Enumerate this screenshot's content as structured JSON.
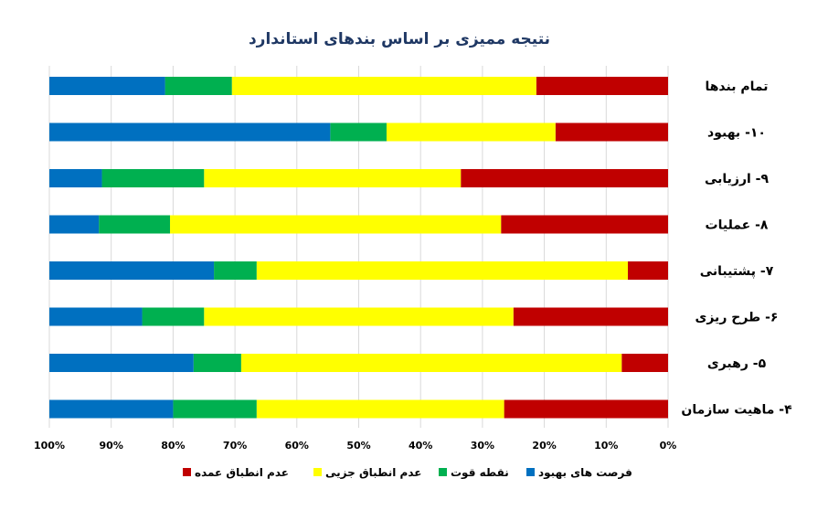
{
  "chart_data": {
    "type": "bar",
    "orientation": "horizontal",
    "stacked": "percent",
    "title": "نتیجه ممیزی بر اساس بندهای استاندارد",
    "categories": [
      "تمام بندها",
      "۱۰- بهبود",
      "۹- ارزیابی",
      "۸- عملیات",
      "۷- پشتیبانی",
      "۶- طرح ریزی",
      "۵- رهبری",
      "۴- ماهیت سازمان"
    ],
    "series": [
      {
        "name": "عدم انطباق عمده",
        "color": "#c00000",
        "values": [
          21.3,
          18.2,
          33.5,
          27.0,
          6.5,
          25.0,
          7.5,
          26.5
        ]
      },
      {
        "name": "عدم انطباق جزیی",
        "color": "#ffff00",
        "values": [
          49.2,
          27.3,
          41.5,
          53.5,
          60.0,
          50.0,
          61.5,
          40.0
        ]
      },
      {
        "name": "نقطه قوت",
        "color": "#00b050",
        "values": [
          10.8,
          9.1,
          16.5,
          11.5,
          6.9,
          10.0,
          7.7,
          13.5
        ]
      },
      {
        "name": "فرصت های بهبود",
        "color": "#0070c0",
        "values": [
          18.7,
          45.4,
          8.5,
          8.0,
          26.6,
          15.0,
          23.3,
          20.0
        ]
      }
    ],
    "x_ticks": [
      "100%",
      "90%",
      "80%",
      "70%",
      "60%",
      "50%",
      "40%",
      "30%",
      "20%",
      "10%",
      "0%"
    ],
    "xlim": [
      0,
      100
    ],
    "x_reversed": true,
    "grid": true,
    "legend_position": "bottom"
  }
}
